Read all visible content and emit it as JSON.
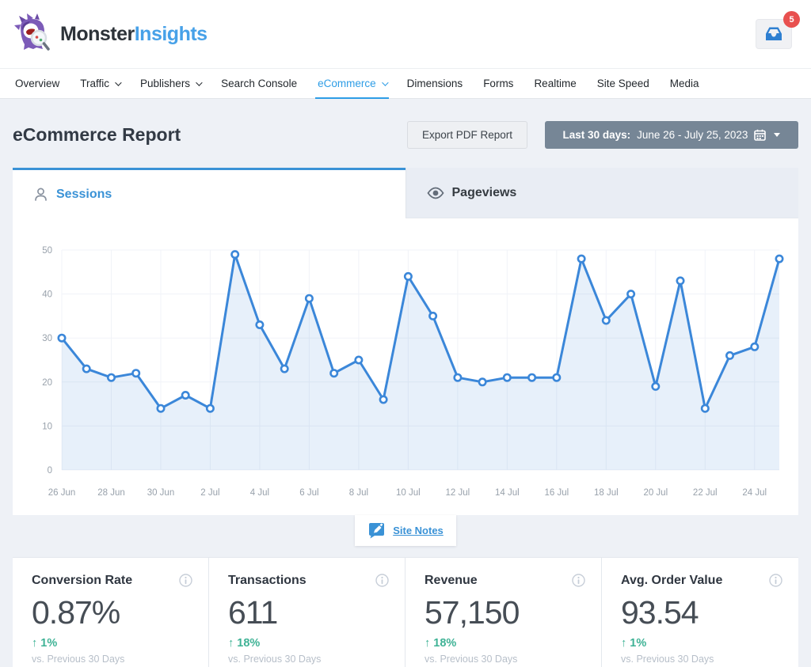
{
  "header": {
    "brand_primary": "Monster",
    "brand_secondary": "Insights",
    "notification_count": "5"
  },
  "nav": {
    "items": [
      {
        "label": "Overview"
      },
      {
        "label": "Traffic"
      },
      {
        "label": "Publishers"
      },
      {
        "label": "Search Console"
      },
      {
        "label": "eCommerce"
      },
      {
        "label": "Dimensions"
      },
      {
        "label": "Forms"
      },
      {
        "label": "Realtime"
      },
      {
        "label": "Site Speed"
      },
      {
        "label": "Media"
      }
    ]
  },
  "toolbar": {
    "page_title": "eCommerce Report",
    "export_label": "Export PDF Report",
    "date_range_label": "Last 30 days:",
    "date_range_value": "June 26 - July 25, 2023"
  },
  "tabs": {
    "sessions_label": "Sessions",
    "pageviews_label": "Pageviews"
  },
  "site_notes_label": "Site Notes",
  "chart_data": {
    "type": "line",
    "series_name": "Sessions",
    "x": [
      "26 Jun",
      "27 Jun",
      "28 Jun",
      "29 Jun",
      "30 Jun",
      "1 Jul",
      "2 Jul",
      "3 Jul",
      "4 Jul",
      "5 Jul",
      "6 Jul",
      "7 Jul",
      "8 Jul",
      "9 Jul",
      "10 Jul",
      "11 Jul",
      "12 Jul",
      "13 Jul",
      "14 Jul",
      "15 Jul",
      "16 Jul",
      "17 Jul",
      "18 Jul",
      "19 Jul",
      "20 Jul",
      "21 Jul",
      "22 Jul",
      "23 Jul",
      "24 Jul",
      "25 Jul"
    ],
    "values": [
      30,
      23,
      21,
      22,
      14,
      17,
      14,
      49,
      33,
      23,
      39,
      22,
      25,
      16,
      44,
      35,
      21,
      20,
      21,
      21,
      21,
      48,
      34,
      40,
      19,
      43,
      14,
      26,
      28,
      48
    ],
    "ylim": [
      0,
      50
    ],
    "yticks": [
      0,
      10,
      20,
      30,
      40,
      50
    ],
    "xtick_labels": [
      "26 Jun",
      "28 Jun",
      "30 Jun",
      "2 Jul",
      "4 Jul",
      "6 Jul",
      "8 Jul",
      "10 Jul",
      "12 Jul",
      "14 Jul",
      "16 Jul",
      "18 Jul",
      "20 Jul",
      "22 Jul",
      "24 Jul"
    ],
    "xtick_step": 2,
    "grid": true,
    "legend": "none",
    "line_color": "#3b87d9",
    "fill_opacity": 0.12,
    "marker": "circle-white"
  },
  "stats": {
    "compare_label": "vs. Previous 30 Days",
    "cards": [
      {
        "title": "Conversion Rate",
        "value": "0.87%",
        "change": "↑ 1%"
      },
      {
        "title": "Transactions",
        "value": "611",
        "change": "↑ 18%"
      },
      {
        "title": "Revenue",
        "value": "57,150",
        "change": "↑ 18%"
      },
      {
        "title": "Avg. Order Value",
        "value": "93.54",
        "change": "↑ 1%"
      }
    ]
  },
  "colors": {
    "accent_blue": "#3a92d6",
    "nav_active": "#2e9de6",
    "positive_green": "#3eb295",
    "badge_red": "#e8504f",
    "date_button": "#768696",
    "page_background": "#eef1f6"
  }
}
